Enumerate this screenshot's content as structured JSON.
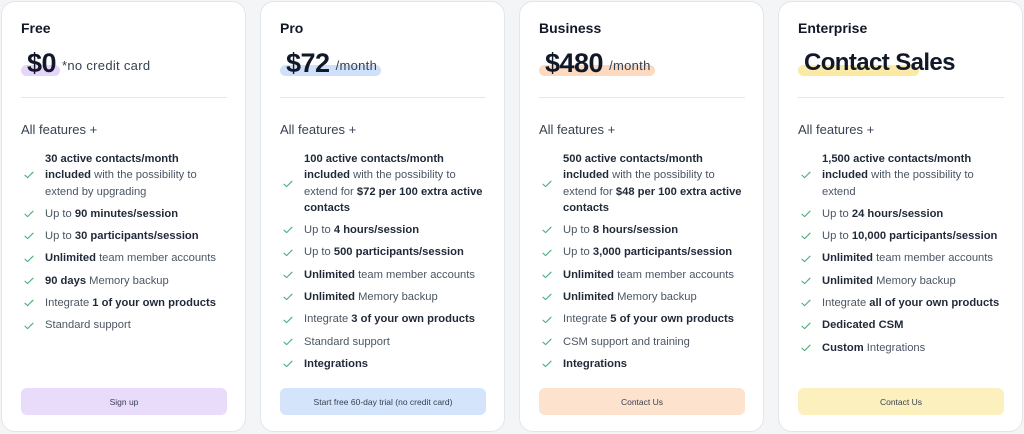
{
  "colors": {
    "check": "#4caf7d",
    "plans": [
      "#e9dcfb",
      "#d4e4fb",
      "#fde2cd",
      "#fdf0bf"
    ],
    "highlights": [
      "#e4d5fa",
      "#cfe0fa",
      "#fcd9bf",
      "#fbeaa6"
    ]
  },
  "plans": [
    {
      "name": "Free",
      "price": "$0",
      "suffix": "*no credit card",
      "all_features": "All features +",
      "features": [
        {
          "html": "<b>30 active contacts/month included</b> with the possibility to extend by upgrading"
        },
        {
          "html": "Up to <b>90 minutes/session</b>"
        },
        {
          "html": "Up to <b>30 participants/session</b>"
        },
        {
          "html": "<b>Unlimited</b> team member accounts"
        },
        {
          "html": "<b>90 days</b> Memory backup"
        },
        {
          "html": "Integrate <b>1 of your own products</b>"
        },
        {
          "html": "Standard support"
        }
      ],
      "cta": "Sign up"
    },
    {
      "name": "Pro",
      "price": "$72",
      "suffix": "/month",
      "all_features": "All features +",
      "features": [
        {
          "html": "<b>100 active contacts/month included</b> with the possibility to extend for <b>$72 per 100 extra active contacts</b>"
        },
        {
          "html": "Up to <b>4 hours/session</b>"
        },
        {
          "html": "Up to <b>500 participants/session</b>"
        },
        {
          "html": "<b>Unlimited</b> team member accounts"
        },
        {
          "html": "<b>Unlimited</b> Memory backup"
        },
        {
          "html": "Integrate <b>3 of your own products</b>"
        },
        {
          "html": "Standard support"
        },
        {
          "html": "<b>Integrations</b>"
        }
      ],
      "cta": "Start free 60-day trial (no credit card)"
    },
    {
      "name": "Business",
      "price": "$480",
      "suffix": "/month",
      "all_features": "All features +",
      "features": [
        {
          "html": "<b>500 active contacts/month included</b> with the possibility to extend for <b>$48 per 100 extra active contacts</b>"
        },
        {
          "html": "Up to <b>8 hours/session</b>"
        },
        {
          "html": "Up to <b>3,000 participants/session</b>"
        },
        {
          "html": "<b>Unlimited</b> team member accounts"
        },
        {
          "html": "<b>Unlimited</b> Memory backup"
        },
        {
          "html": "Integrate <b>5 of your own products</b>"
        },
        {
          "html": "CSM support and training"
        },
        {
          "html": "<b>Integrations</b>"
        }
      ],
      "cta": "Contact Us"
    },
    {
      "name": "Enterprise",
      "price": "Contact Sales",
      "suffix": "",
      "all_features": "All features +",
      "features": [
        {
          "html": "<b>1,500 active contacts/month included</b> with the possibility to extend"
        },
        {
          "html": "Up to <b>24 hours/session</b>"
        },
        {
          "html": "Up to <b>10,000 participants/session</b>"
        },
        {
          "html": "<b>Unlimited</b> team member accounts"
        },
        {
          "html": "<b>Unlimited</b> Memory backup"
        },
        {
          "html": "Integrate <b>all of your own products</b>"
        },
        {
          "html": "<b>Dedicated CSM</b>"
        },
        {
          "html": "<b>Custom</b> Integrations"
        }
      ],
      "cta": "Contact Us"
    }
  ]
}
